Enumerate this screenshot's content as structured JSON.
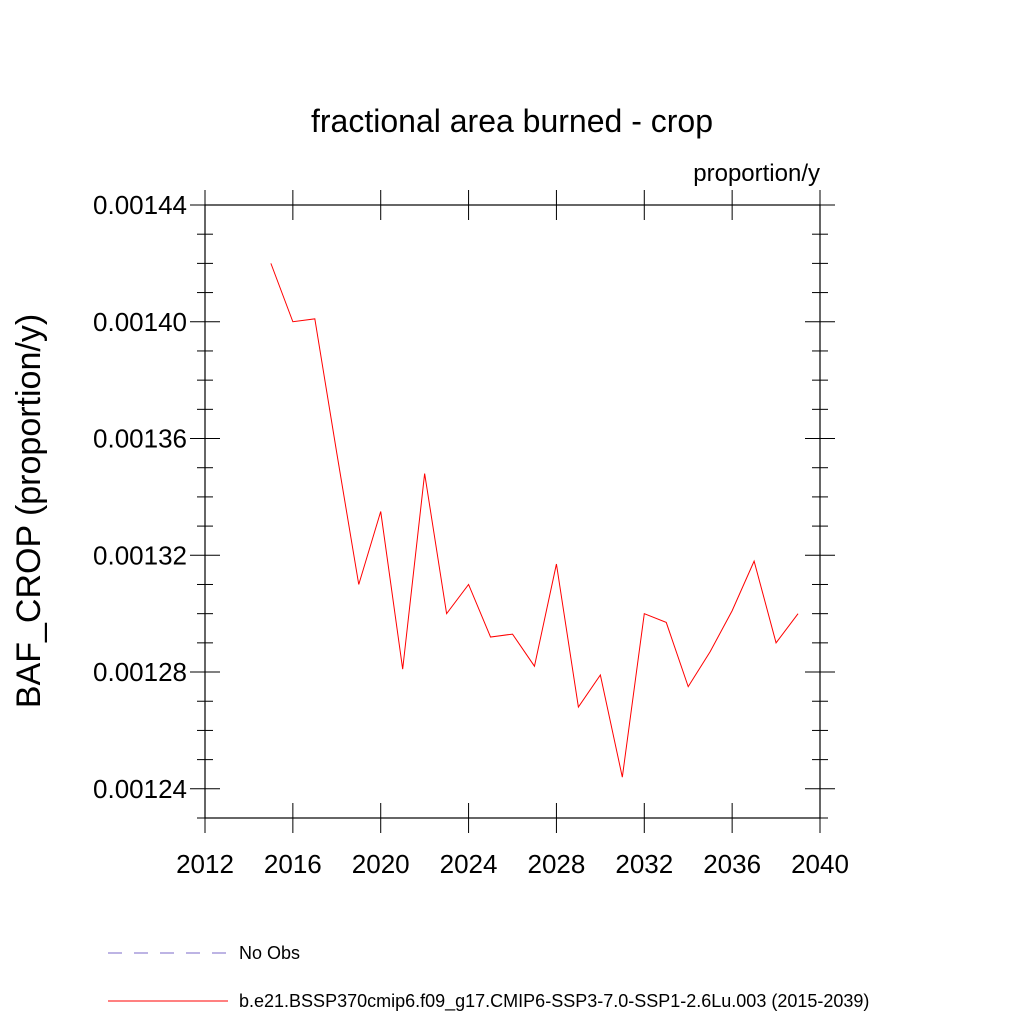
{
  "chart_data": {
    "type": "line",
    "title": "fractional area burned - crop",
    "units_label": "proportion/y",
    "ylabel": "BAF_CROP  (proportion/y)",
    "xlabel": "",
    "xlim": [
      2012,
      2040
    ],
    "ylim": [
      0.00123,
      0.00144
    ],
    "x_ticks": [
      2012,
      2016,
      2020,
      2024,
      2028,
      2032,
      2036,
      2040
    ],
    "x_tick_labels": [
      "2012",
      "2016",
      "2020",
      "2024",
      "2028",
      "2032",
      "2036",
      "2040"
    ],
    "y_ticks": [
      0.00124,
      0.00128,
      0.00132,
      0.00136,
      0.0014,
      0.00144
    ],
    "y_tick_labels": [
      "0.00124",
      "0.00128",
      "0.00132",
      "0.00136",
      "0.00140",
      "0.00144"
    ],
    "series": [
      {
        "name": "b.e21.BSSP370cmip6.f09_g17.CMIP6-SSP3-7.0-SSP1-2.6Lu.003 (2015-2039)",
        "color": "#ff0000",
        "x": [
          2015,
          2016,
          2017,
          2018,
          2019,
          2020,
          2021,
          2022,
          2023,
          2024,
          2025,
          2026,
          2027,
          2028,
          2029,
          2030,
          2031,
          2032,
          2033,
          2034,
          2035,
          2036,
          2037,
          2038,
          2039
        ],
        "values": [
          0.00142,
          0.0014,
          0.001401,
          0.001355,
          0.00131,
          0.001335,
          0.001281,
          0.001348,
          0.0013,
          0.00131,
          0.001292,
          0.001293,
          0.001282,
          0.001317,
          0.001268,
          0.001279,
          0.001244,
          0.0013,
          0.001297,
          0.001275,
          0.001287,
          0.001301,
          0.001318,
          0.00129,
          0.0013
        ]
      }
    ],
    "legend": [
      {
        "label": "No Obs",
        "color": "#7b68c8",
        "style": "dashed"
      },
      {
        "label": "b.e21.BSSP370cmip6.f09_g17.CMIP6-SSP3-7.0-SSP1-2.6Lu.003 (2015-2039)",
        "color": "#ff0000",
        "style": "solid"
      }
    ]
  }
}
